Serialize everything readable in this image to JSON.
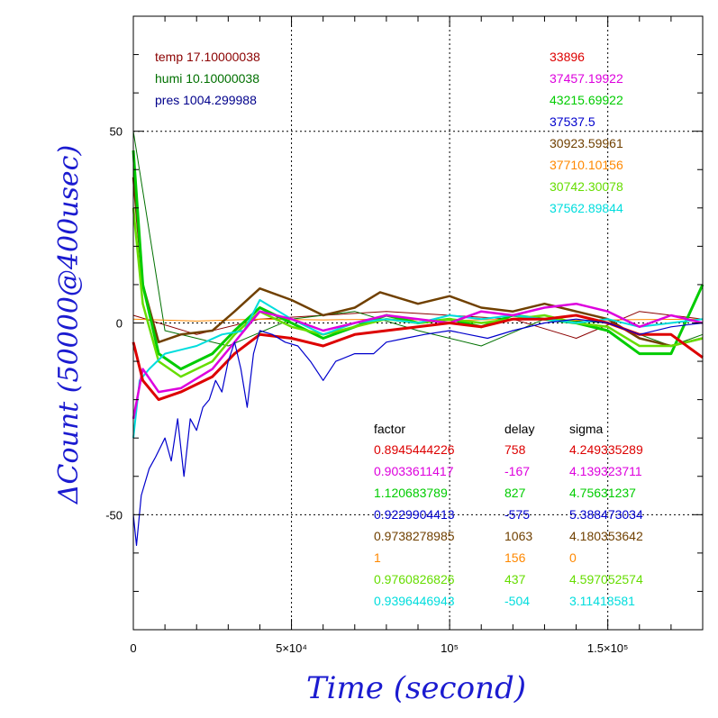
{
  "chart_data": {
    "type": "line",
    "xlabel": "Time (second)",
    "ylabel": "ΔCount (50000@400usec)",
    "xlim": [
      0,
      180000
    ],
    "ylim": [
      -80,
      80
    ],
    "grid": true,
    "x_ticks": [
      {
        "value": 0,
        "label": "0"
      },
      {
        "value": 50000,
        "label": "5×10⁴"
      },
      {
        "value": 100000,
        "label": "10⁵"
      },
      {
        "value": 150000,
        "label": "1.5×10⁵"
      }
    ],
    "y_ticks": [
      {
        "value": 50,
        "label": "50"
      },
      {
        "value": 0,
        "label": "0"
      },
      {
        "value": -50,
        "label": "-50"
      }
    ],
    "env_labels": [
      {
        "text": "temp 17.10000038",
        "color": "#8b0000"
      },
      {
        "text": "humi 10.10000038",
        "color": "#007000"
      },
      {
        "text": "pres 1004.299988",
        "color": "#00008b"
      }
    ],
    "reference_values": [
      {
        "text": "33896",
        "color": "#dd0000"
      },
      {
        "text": "37457.19922",
        "color": "#dd00dd"
      },
      {
        "text": "43215.69922",
        "color": "#00cc00"
      },
      {
        "text": "37537.5",
        "color": "#0000cc"
      },
      {
        "text": "30923.59961",
        "color": "#704000"
      },
      {
        "text": "37710.10156",
        "color": "#ff8800"
      },
      {
        "text": "30742.30078",
        "color": "#66dd00"
      },
      {
        "text": "37562.89844",
        "color": "#00dddd"
      }
    ],
    "table": {
      "headers": [
        "factor",
        "delay",
        "sigma"
      ],
      "rows": [
        {
          "factor": "0.8945444226",
          "delay": "758",
          "sigma": "4.249335289",
          "color": "#dd0000"
        },
        {
          "factor": "0.9033611417",
          "delay": "-167",
          "sigma": "4.139323711",
          "color": "#dd00dd"
        },
        {
          "factor": "1.120683789",
          "delay": "827",
          "sigma": "4.75631237",
          "color": "#00cc00"
        },
        {
          "factor": "0.9229904413",
          "delay": "-575",
          "sigma": "5.388473034",
          "color": "#0000cc"
        },
        {
          "factor": "0.9738278985",
          "delay": "1063",
          "sigma": "4.180353642",
          "color": "#704000"
        },
        {
          "factor": "1",
          "delay": "156",
          "sigma": "0",
          "color": "#ff8800"
        },
        {
          "factor": "0.9760826826",
          "delay": "437",
          "sigma": "4.597052574",
          "color": "#66dd00"
        },
        {
          "factor": "0.9396446943",
          "delay": "-504",
          "sigma": "3.11418581",
          "color": "#00dddd"
        }
      ]
    },
    "series": [
      {
        "color": "#8b0000",
        "width": 1,
        "x": [
          0,
          20000,
          40000,
          60000,
          80000,
          100000,
          120000,
          140000,
          160000,
          180000
        ],
        "y": [
          2,
          -3,
          1,
          2,
          3,
          2,
          1,
          -4,
          3,
          1
        ]
      },
      {
        "color": "#007000",
        "width": 1,
        "x": [
          0,
          10000,
          30000,
          50000,
          70000,
          90000,
          110000,
          130000,
          150000,
          170000,
          180000
        ],
        "y": [
          50,
          -2,
          -6,
          1,
          3,
          -2,
          -6,
          1,
          0,
          -6,
          -3
        ]
      },
      {
        "color": "#ff8800",
        "width": 1,
        "x": [
          0,
          20000,
          40000,
          60000,
          80000,
          100000,
          120000,
          140000,
          160000,
          180000
        ],
        "y": [
          1,
          0.5,
          1,
          0.8,
          1,
          0.6,
          1,
          0.7,
          0.9,
          1
        ]
      },
      {
        "color": "#704000",
        "width": 2.5,
        "x": [
          0,
          3000,
          8000,
          15000,
          25000,
          32000,
          40000,
          50000,
          60000,
          70000,
          78000,
          90000,
          100000,
          110000,
          120000,
          130000,
          140000,
          150000,
          160000,
          170000,
          180000
        ],
        "y": [
          38,
          10,
          -5,
          -3,
          -2,
          3,
          9,
          6,
          2,
          4,
          8,
          5,
          7,
          4,
          3,
          5,
          3,
          1,
          -4,
          -6,
          -4
        ]
      },
      {
        "color": "#00cc00",
        "width": 3,
        "x": [
          0,
          3000,
          8000,
          15000,
          25000,
          32000,
          40000,
          50000,
          60000,
          70000,
          80000,
          90000,
          100000,
          110000,
          120000,
          130000,
          140000,
          150000,
          160000,
          170000,
          180000
        ],
        "y": [
          45,
          10,
          -8,
          -12,
          -8,
          -2,
          4,
          0,
          -4,
          -1,
          2,
          0,
          1,
          -1,
          2,
          1,
          0,
          -2,
          -8,
          -8,
          10
        ]
      },
      {
        "color": "#66dd00",
        "width": 2.5,
        "x": [
          0,
          3000,
          8000,
          15000,
          25000,
          32000,
          40000,
          50000,
          60000,
          70000,
          80000,
          90000,
          100000,
          110000,
          120000,
          130000,
          140000,
          150000,
          160000,
          170000,
          180000
        ],
        "y": [
          30,
          5,
          -10,
          -14,
          -10,
          -3,
          3,
          -1,
          -3,
          -1,
          1,
          0,
          1,
          0,
          1,
          2,
          0,
          -1,
          -6,
          -6,
          -4
        ]
      },
      {
        "color": "#00dddd",
        "width": 2,
        "x": [
          0,
          2000,
          5000,
          10000,
          15000,
          20000,
          28000,
          35000,
          40000,
          50000,
          60000,
          70000,
          80000,
          90000,
          100000,
          110000,
          120000,
          130000,
          140000,
          150000,
          160000,
          170000,
          180000
        ],
        "y": [
          -30,
          -15,
          -12,
          -8,
          -7,
          -6,
          -3,
          -2,
          6,
          1,
          -3,
          0,
          1,
          0,
          2,
          1,
          2,
          1,
          0,
          1,
          -1,
          0,
          1
        ]
      },
      {
        "color": "#dd00dd",
        "width": 2.5,
        "x": [
          0,
          3000,
          8000,
          15000,
          25000,
          32000,
          40000,
          50000,
          60000,
          70000,
          80000,
          90000,
          100000,
          110000,
          120000,
          130000,
          140000,
          150000,
          160000,
          170000,
          180000
        ],
        "y": [
          -25,
          -12,
          -18,
          -17,
          -12,
          -5,
          3,
          1,
          -2,
          0,
          2,
          1,
          0,
          3,
          2,
          4,
          5,
          3,
          -1,
          2,
          0
        ]
      },
      {
        "color": "#dd0000",
        "width": 3,
        "x": [
          0,
          3000,
          8000,
          15000,
          25000,
          32000,
          40000,
          50000,
          60000,
          70000,
          80000,
          90000,
          100000,
          110000,
          120000,
          130000,
          140000,
          150000,
          160000,
          170000,
          180000
        ],
        "y": [
          -5,
          -15,
          -20,
          -18,
          -14,
          -8,
          -3,
          -4,
          -6,
          -3,
          -2,
          -1,
          0,
          -1,
          1,
          1,
          2,
          0,
          -3,
          -3,
          -9
        ]
      },
      {
        "color": "#0000cc",
        "width": 1.2,
        "x": [
          0,
          1000,
          2500,
          5000,
          7000,
          10000,
          12000,
          14000,
          16000,
          18000,
          20000,
          22000,
          24000,
          26000,
          28000,
          30000,
          32000,
          34000,
          36000,
          38000,
          40000,
          44000,
          48000,
          52000,
          56000,
          60000,
          64000,
          70000,
          76000,
          80000,
          86000,
          92000,
          100000,
          106000,
          112000,
          120000,
          130000,
          140000,
          150000,
          160000,
          170000,
          180000
        ],
        "y": [
          -50,
          -58,
          -45,
          -38,
          -35,
          -30,
          -36,
          -25,
          -40,
          -25,
          -28,
          -22,
          -20,
          -15,
          -18,
          -10,
          -5,
          -12,
          -22,
          -8,
          -2,
          -3,
          -5,
          -6,
          -10,
          -15,
          -10,
          -8,
          -8,
          -5,
          -4,
          -3,
          -2,
          -3,
          -4,
          -2,
          0,
          1,
          0,
          -3,
          -1,
          0
        ]
      }
    ]
  }
}
